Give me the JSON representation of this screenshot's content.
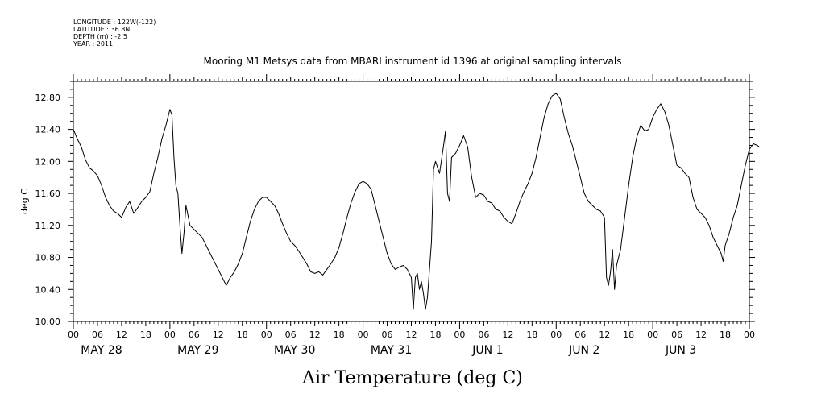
{
  "metadata": [
    "LONGITUDE : 122W(-122)",
    "LATITUDE : 36.8N",
    "DEPTH (m) : -2.5",
    "YEAR : 2011"
  ],
  "chart_data": {
    "type": "line",
    "title": "Mooring M1 Metsys data from MBARI instrument id 1396 at original sampling intervals",
    "xlabel": "Air Temperature (deg C)",
    "ylabel": "deg C",
    "ylim": [
      10.0,
      13.0
    ],
    "yticks": [
      "10.00",
      "10.40",
      "10.80",
      "11.20",
      "11.60",
      "12.00",
      "12.40",
      "12.80"
    ],
    "x_unit": "hours since May 28 00:00",
    "xlim": [
      0,
      168
    ],
    "hour_tick_labels": [
      "00",
      "06",
      "12",
      "18",
      "00",
      "06",
      "12",
      "18",
      "00",
      "06",
      "12",
      "18",
      "00",
      "06",
      "12",
      "18",
      "00",
      "06",
      "12",
      "18",
      "00",
      "06",
      "12",
      "18",
      "00",
      "06",
      "12",
      "18",
      "00"
    ],
    "day_labels": [
      "MAY 28",
      "MAY 29",
      "MAY 30",
      "MAY 31",
      "JUN  1",
      "JUN  2",
      "JUN  3"
    ],
    "grid": false,
    "series": [
      {
        "color": "#000000",
        "points": [
          [
            0,
            12.4
          ],
          [
            1,
            12.28
          ],
          [
            2,
            12.18
          ],
          [
            3,
            12.02
          ],
          [
            4,
            11.92
          ],
          [
            5,
            11.88
          ],
          [
            6,
            11.82
          ],
          [
            7,
            11.7
          ],
          [
            8,
            11.55
          ],
          [
            9,
            11.45
          ],
          [
            10,
            11.38
          ],
          [
            11,
            11.35
          ],
          [
            12,
            11.3
          ],
          [
            13,
            11.42
          ],
          [
            14,
            11.5
          ],
          [
            15,
            11.35
          ],
          [
            16,
            11.42
          ],
          [
            17,
            11.5
          ],
          [
            18,
            11.55
          ],
          [
            19,
            11.62
          ],
          [
            20,
            11.85
          ],
          [
            21,
            12.05
          ],
          [
            22,
            12.28
          ],
          [
            23,
            12.45
          ],
          [
            24,
            12.65
          ],
          [
            24.5,
            12.58
          ],
          [
            25,
            12.05
          ],
          [
            25.5,
            11.7
          ],
          [
            26,
            11.6
          ],
          [
            26.5,
            11.2
          ],
          [
            27,
            10.85
          ],
          [
            27.5,
            11.1
          ],
          [
            28,
            11.45
          ],
          [
            29,
            11.2
          ],
          [
            30,
            11.15
          ],
          [
            31,
            11.1
          ],
          [
            32,
            11.05
          ],
          [
            33,
            10.95
          ],
          [
            34,
            10.85
          ],
          [
            35,
            10.75
          ],
          [
            36,
            10.65
          ],
          [
            37,
            10.55
          ],
          [
            38,
            10.45
          ],
          [
            39,
            10.55
          ],
          [
            40,
            10.62
          ],
          [
            41,
            10.72
          ],
          [
            42,
            10.85
          ],
          [
            43,
            11.05
          ],
          [
            44,
            11.25
          ],
          [
            45,
            11.4
          ],
          [
            46,
            11.5
          ],
          [
            47,
            11.55
          ],
          [
            48,
            11.55
          ],
          [
            49,
            11.5
          ],
          [
            50,
            11.45
          ],
          [
            51,
            11.35
          ],
          [
            52,
            11.22
          ],
          [
            53,
            11.1
          ],
          [
            54,
            11.0
          ],
          [
            55,
            10.95
          ],
          [
            56,
            10.88
          ],
          [
            57,
            10.8
          ],
          [
            58,
            10.72
          ],
          [
            59,
            10.62
          ],
          [
            60,
            10.6
          ],
          [
            61,
            10.62
          ],
          [
            62,
            10.58
          ],
          [
            63,
            10.65
          ],
          [
            64,
            10.72
          ],
          [
            65,
            10.8
          ],
          [
            66,
            10.92
          ],
          [
            67,
            11.1
          ],
          [
            68,
            11.3
          ],
          [
            69,
            11.48
          ],
          [
            70,
            11.62
          ],
          [
            71,
            11.72
          ],
          [
            72,
            11.75
          ],
          [
            73,
            11.72
          ],
          [
            74,
            11.65
          ],
          [
            75,
            11.45
          ],
          [
            76,
            11.25
          ],
          [
            77,
            11.05
          ],
          [
            78,
            10.85
          ],
          [
            79,
            10.72
          ],
          [
            80,
            10.65
          ],
          [
            81,
            10.68
          ],
          [
            82,
            10.7
          ],
          [
            83,
            10.65
          ],
          [
            84,
            10.55
          ],
          [
            84.5,
            10.15
          ],
          [
            85,
            10.55
          ],
          [
            85.5,
            10.6
          ],
          [
            86,
            10.4
          ],
          [
            86.5,
            10.5
          ],
          [
            87,
            10.35
          ],
          [
            87.5,
            10.15
          ],
          [
            88,
            10.3
          ],
          [
            89,
            11.0
          ],
          [
            89.5,
            11.9
          ],
          [
            90,
            12.0
          ],
          [
            91,
            11.85
          ],
          [
            92,
            12.2
          ],
          [
            92.5,
            12.38
          ],
          [
            93,
            11.6
          ],
          [
            93.5,
            11.5
          ],
          [
            94,
            12.05
          ],
          [
            95,
            12.1
          ],
          [
            96,
            12.2
          ],
          [
            97,
            12.32
          ],
          [
            98,
            12.18
          ],
          [
            99,
            11.8
          ],
          [
            100,
            11.55
          ],
          [
            101,
            11.6
          ],
          [
            102,
            11.58
          ],
          [
            103,
            11.5
          ],
          [
            104,
            11.48
          ],
          [
            105,
            11.4
          ],
          [
            106,
            11.38
          ],
          [
            107,
            11.3
          ],
          [
            108,
            11.25
          ],
          [
            109,
            11.22
          ],
          [
            110,
            11.35
          ],
          [
            111,
            11.5
          ],
          [
            112,
            11.62
          ],
          [
            113,
            11.72
          ],
          [
            114,
            11.85
          ],
          [
            115,
            12.05
          ],
          [
            116,
            12.3
          ],
          [
            117,
            12.55
          ],
          [
            118,
            12.72
          ],
          [
            119,
            12.82
          ],
          [
            120,
            12.85
          ],
          [
            121,
            12.78
          ],
          [
            122,
            12.55
          ],
          [
            123,
            12.35
          ],
          [
            124,
            12.2
          ],
          [
            125,
            12.0
          ],
          [
            126,
            11.8
          ],
          [
            127,
            11.6
          ],
          [
            128,
            11.5
          ],
          [
            129,
            11.45
          ],
          [
            130,
            11.4
          ],
          [
            131,
            11.38
          ],
          [
            132,
            11.3
          ],
          [
            132.5,
            10.55
          ],
          [
            133,
            10.45
          ],
          [
            133.5,
            10.62
          ],
          [
            134,
            10.9
          ],
          [
            134.5,
            10.4
          ],
          [
            135,
            10.7
          ],
          [
            136,
            10.9
          ],
          [
            137,
            11.3
          ],
          [
            138,
            11.7
          ],
          [
            139,
            12.05
          ],
          [
            140,
            12.3
          ],
          [
            141,
            12.45
          ],
          [
            142,
            12.38
          ],
          [
            143,
            12.4
          ],
          [
            144,
            12.55
          ],
          [
            145,
            12.65
          ],
          [
            146,
            12.72
          ],
          [
            147,
            12.62
          ],
          [
            148,
            12.45
          ],
          [
            149,
            12.2
          ],
          [
            150,
            11.95
          ],
          [
            151,
            11.92
          ],
          [
            152,
            11.85
          ],
          [
            153,
            11.8
          ],
          [
            154,
            11.55
          ],
          [
            155,
            11.4
          ],
          [
            156,
            11.35
          ],
          [
            157,
            11.3
          ],
          [
            158,
            11.2
          ],
          [
            159,
            11.05
          ],
          [
            160,
            10.95
          ],
          [
            161,
            10.85
          ],
          [
            161.5,
            10.75
          ],
          [
            162,
            10.95
          ],
          [
            163,
            11.1
          ],
          [
            164,
            11.3
          ],
          [
            165,
            11.45
          ],
          [
            166,
            11.7
          ],
          [
            167,
            11.95
          ],
          [
            168,
            12.15
          ],
          [
            169,
            12.22
          ],
          [
            170,
            12.2
          ],
          [
            170.5,
            12.18
          ]
        ]
      }
    ]
  }
}
